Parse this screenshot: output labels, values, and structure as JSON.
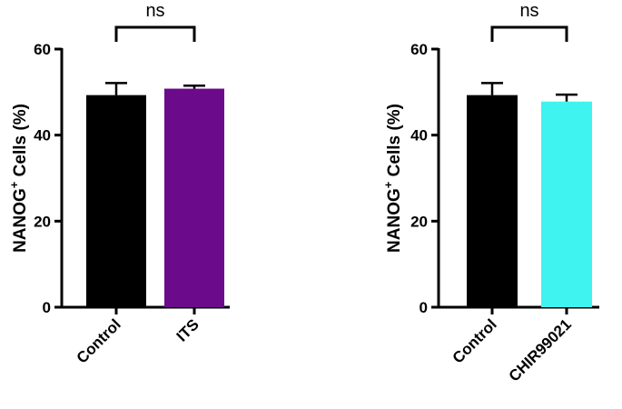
{
  "chart_data": [
    {
      "type": "bar",
      "ylabel_main": "NANOG",
      "ylabel_sup": "+",
      "ylabel_rest": " Cells (%)",
      "ylim": [
        0,
        60
      ],
      "yticks": [
        0,
        20,
        40,
        60
      ],
      "categories": [
        "Control",
        "ITS"
      ],
      "values": [
        49.3,
        50.8
      ],
      "errors": [
        2.8,
        0.7
      ],
      "colors": [
        "#000000",
        "#6b0a8a"
      ],
      "significance": "ns",
      "grid": false
    },
    {
      "type": "bar",
      "ylabel_main": "NANOG",
      "ylabel_sup": "+",
      "ylabel_rest": " Cells (%)",
      "ylim": [
        0,
        60
      ],
      "yticks": [
        0,
        20,
        40,
        60
      ],
      "categories": [
        "Control",
        "CHIR99021"
      ],
      "values": [
        49.3,
        47.8
      ],
      "errors": [
        2.8,
        1.6
      ],
      "colors": [
        "#000000",
        "#3ff3f0"
      ],
      "significance": "ns",
      "grid": false
    }
  ]
}
